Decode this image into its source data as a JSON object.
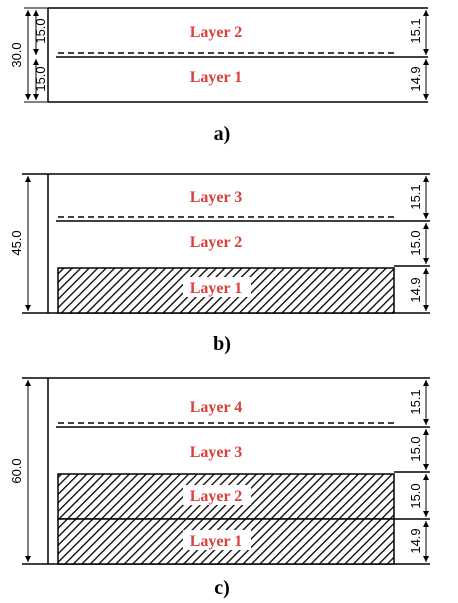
{
  "panels": [
    {
      "caption": "a)",
      "total_height": "30.0",
      "left_segments": [
        "15.0",
        "15.0"
      ],
      "layers": [
        {
          "label": "Layer 2",
          "thickness": "15.1",
          "hatched": false
        },
        {
          "label": "Layer 1",
          "thickness": "14.9",
          "hatched": false
        }
      ]
    },
    {
      "caption": "b)",
      "total_height": "45.0",
      "layers": [
        {
          "label": "Layer 3",
          "thickness": "15.1",
          "hatched": false
        },
        {
          "label": "Layer 2",
          "thickness": "15.0",
          "hatched": false
        },
        {
          "label": "Layer 1",
          "thickness": "14.9",
          "hatched": true
        }
      ]
    },
    {
      "caption": "c)",
      "total_height": "60.0",
      "layers": [
        {
          "label": "Layer 4",
          "thickness": "15.1",
          "hatched": false
        },
        {
          "label": "Layer 3",
          "thickness": "15.0",
          "hatched": false
        },
        {
          "label": "Layer 2",
          "thickness": "15.0",
          "hatched": true
        },
        {
          "label": "Layer 1",
          "thickness": "14.9",
          "hatched": true
        }
      ]
    }
  ]
}
